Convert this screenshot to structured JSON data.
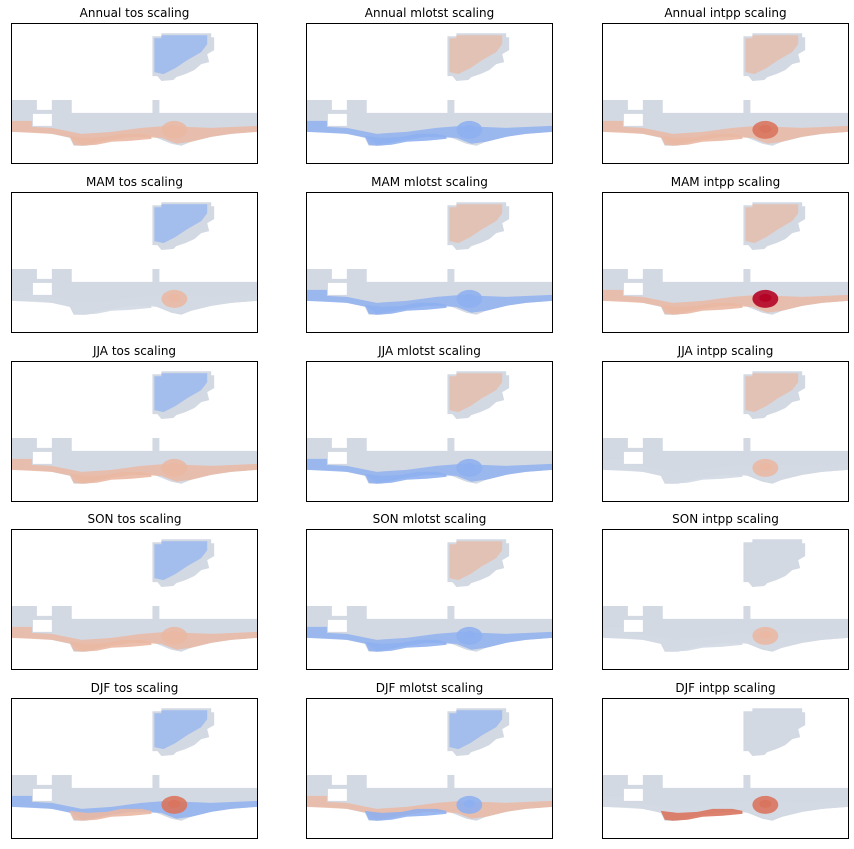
{
  "chart_data": [
    {
      "type": "heatmap",
      "title": "Annual tos scaling",
      "colormap": "coolwarm",
      "region": {
        "arctic": "blue",
        "tropics": "warm",
        "gulf": "warm",
        "south": "warm"
      }
    },
    {
      "type": "heatmap",
      "title": "Annual mlotst scaling",
      "colormap": "coolwarm",
      "region": {
        "arctic": "warm",
        "tropics": "blue",
        "gulf": "blue",
        "south": "blue"
      }
    },
    {
      "type": "heatmap",
      "title": "Annual intpp scaling",
      "colormap": "coolwarm",
      "region": {
        "arctic": "warm",
        "tropics": "warm",
        "gulf": "red",
        "south": "warm"
      }
    },
    {
      "type": "heatmap",
      "title": "MAM tos scaling",
      "colormap": "coolwarm",
      "region": {
        "arctic": "blue",
        "tropics": "neutral",
        "gulf": "warm",
        "south": "neutral"
      }
    },
    {
      "type": "heatmap",
      "title": "MAM mlotst scaling",
      "colormap": "coolwarm",
      "region": {
        "arctic": "warm",
        "tropics": "blue",
        "gulf": "blue",
        "south": "blue"
      }
    },
    {
      "type": "heatmap",
      "title": "MAM intpp scaling",
      "colormap": "coolwarm",
      "region": {
        "arctic": "warm",
        "tropics": "warm",
        "gulf": "darkred",
        "south": "warm"
      }
    },
    {
      "type": "heatmap",
      "title": "JJA tos scaling",
      "colormap": "coolwarm",
      "region": {
        "arctic": "blue",
        "tropics": "warm",
        "gulf": "warm",
        "south": "warm"
      }
    },
    {
      "type": "heatmap",
      "title": "JJA mlotst scaling",
      "colormap": "coolwarm",
      "region": {
        "arctic": "warm",
        "tropics": "blue",
        "gulf": "blue",
        "south": "blue"
      }
    },
    {
      "type": "heatmap",
      "title": "JJA intpp scaling",
      "colormap": "coolwarm",
      "region": {
        "arctic": "warm",
        "tropics": "neutral",
        "gulf": "warm",
        "south": "neutral"
      }
    },
    {
      "type": "heatmap",
      "title": "SON tos scaling",
      "colormap": "coolwarm",
      "region": {
        "arctic": "blue",
        "tropics": "warm",
        "gulf": "warm",
        "south": "warm"
      }
    },
    {
      "type": "heatmap",
      "title": "SON mlotst scaling",
      "colormap": "coolwarm",
      "region": {
        "arctic": "warm",
        "tropics": "blue",
        "gulf": "blue",
        "south": "blue"
      }
    },
    {
      "type": "heatmap",
      "title": "SON intpp scaling",
      "colormap": "coolwarm",
      "region": {
        "arctic": "neutral",
        "tropics": "neutral",
        "gulf": "warm",
        "south": "neutral"
      }
    },
    {
      "type": "heatmap",
      "title": "DJF tos scaling",
      "colormap": "coolwarm",
      "region": {
        "arctic": "blue",
        "tropics": "blue",
        "gulf": "red",
        "south": "warm"
      }
    },
    {
      "type": "heatmap",
      "title": "DJF mlotst scaling",
      "colormap": "coolwarm",
      "region": {
        "arctic": "blue",
        "tropics": "warm",
        "gulf": "blue",
        "south": "blue"
      }
    },
    {
      "type": "heatmap",
      "title": "DJF intpp scaling",
      "colormap": "coolwarm",
      "region": {
        "arctic": "neutral",
        "tropics": "neutral",
        "gulf": "red",
        "south": "red"
      }
    }
  ],
  "colors": {
    "neutral": "#d3d9e3",
    "warm": "#eab8a3",
    "red": "#d9745e",
    "darkred": "#b40426",
    "blue": "#8fb0f0",
    "deepblue": "#3b4cc0",
    "tan": "#e3d4cc"
  }
}
